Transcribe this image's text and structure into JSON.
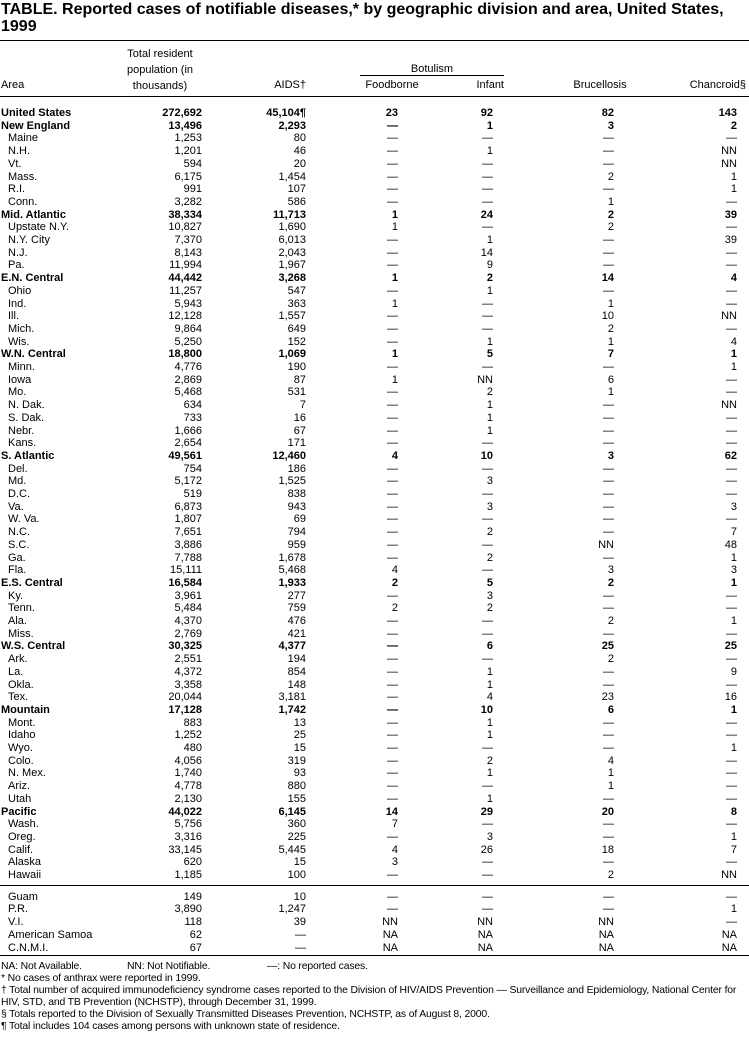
{
  "header": {
    "title": "TABLE. Reported cases of notifiable diseases,* by geographic division and area, United States, 1999"
  },
  "table": {
    "columns": {
      "area": "Area",
      "population": "Total resident population (in thousands)",
      "aids": "AIDS†",
      "botulism": "Botulism",
      "foodborne": "Foodborne",
      "infant": "Infant",
      "brucellosis": "Brucellosis",
      "chancroid": "Chancroid§"
    },
    "sections": [
      {
        "rows": [
          {
            "bold": true,
            "cells": [
              "United States",
              "272,692",
              "45,104¶",
              "23",
              "92",
              "82",
              "143"
            ]
          },
          {
            "bold": true,
            "cells": [
              "New England",
              "13,496",
              "2,293",
              "—",
              "1",
              "3",
              "2"
            ]
          },
          {
            "bold": false,
            "cells": [
              "Maine",
              "1,253",
              "80",
              "—",
              "—",
              "—",
              "—"
            ]
          },
          {
            "bold": false,
            "cells": [
              "N.H.",
              "1,201",
              "46",
              "—",
              "1",
              "—",
              "NN"
            ]
          },
          {
            "bold": false,
            "cells": [
              "Vt.",
              "594",
              "20",
              "—",
              "—",
              "—",
              "NN"
            ]
          },
          {
            "bold": false,
            "cells": [
              "Mass.",
              "6,175",
              "1,454",
              "—",
              "—",
              "2",
              "1"
            ]
          },
          {
            "bold": false,
            "cells": [
              "R.I.",
              "991",
              "107",
              "—",
              "—",
              "—",
              "1"
            ]
          },
          {
            "bold": false,
            "cells": [
              "Conn.",
              "3,282",
              "586",
              "—",
              "—",
              "1",
              "—"
            ]
          },
          {
            "bold": true,
            "cells": [
              "Mid. Atlantic",
              "38,334",
              "11,713",
              "1",
              "24",
              "2",
              "39"
            ]
          },
          {
            "bold": false,
            "cells": [
              "Upstate N.Y.",
              "10,827",
              "1,690",
              "1",
              "—",
              "2",
              "—"
            ]
          },
          {
            "bold": false,
            "cells": [
              "N.Y. City",
              "7,370",
              "6,013",
              "—",
              "1",
              "—",
              "39"
            ]
          },
          {
            "bold": false,
            "cells": [
              "N.J.",
              "8,143",
              "2,043",
              "—",
              "14",
              "—",
              "—"
            ]
          },
          {
            "bold": false,
            "cells": [
              "Pa.",
              "11,994",
              "1,967",
              "—",
              "9",
              "—",
              "—"
            ]
          },
          {
            "bold": true,
            "cells": [
              "E.N. Central",
              "44,442",
              "3,268",
              "1",
              "2",
              "14",
              "4"
            ]
          },
          {
            "bold": false,
            "cells": [
              "Ohio",
              "11,257",
              "547",
              "—",
              "1",
              "—",
              "—"
            ]
          },
          {
            "bold": false,
            "cells": [
              "Ind.",
              "5,943",
              "363",
              "1",
              "—",
              "1",
              "—"
            ]
          },
          {
            "bold": false,
            "cells": [
              "Ill.",
              "12,128",
              "1,557",
              "—",
              "—",
              "10",
              "NN"
            ]
          },
          {
            "bold": false,
            "cells": [
              "Mich.",
              "9,864",
              "649",
              "—",
              "—",
              "2",
              "—"
            ]
          },
          {
            "bold": false,
            "cells": [
              "Wis.",
              "5,250",
              "152",
              "—",
              "1",
              "1",
              "4"
            ]
          },
          {
            "bold": true,
            "cells": [
              "W.N. Central",
              "18,800",
              "1,069",
              "1",
              "5",
              "7",
              "1"
            ]
          },
          {
            "bold": false,
            "cells": [
              "Minn.",
              "4,776",
              "190",
              "—",
              "—",
              "—",
              "1"
            ]
          },
          {
            "bold": false,
            "cells": [
              "Iowa",
              "2,869",
              "87",
              "1",
              "NN",
              "6",
              "—"
            ]
          },
          {
            "bold": false,
            "cells": [
              "Mo.",
              "5,468",
              "531",
              "—",
              "2",
              "1",
              "—"
            ]
          },
          {
            "bold": false,
            "cells": [
              "N. Dak.",
              "634",
              "7",
              "—",
              "1",
              "—",
              "NN"
            ]
          },
          {
            "bold": false,
            "cells": [
              "S. Dak.",
              "733",
              "16",
              "—",
              "1",
              "—",
              "—"
            ]
          },
          {
            "bold": false,
            "cells": [
              "Nebr.",
              "1,666",
              "67",
              "—",
              "1",
              "—",
              "—"
            ]
          },
          {
            "bold": false,
            "cells": [
              "Kans.",
              "2,654",
              "171",
              "—",
              "—",
              "—",
              "—"
            ]
          },
          {
            "bold": true,
            "cells": [
              "S. Atlantic",
              "49,561",
              "12,460",
              "4",
              "10",
              "3",
              "62"
            ]
          },
          {
            "bold": false,
            "cells": [
              "Del.",
              "754",
              "186",
              "—",
              "—",
              "—",
              "—"
            ]
          },
          {
            "bold": false,
            "cells": [
              "Md.",
              "5,172",
              "1,525",
              "—",
              "3",
              "—",
              "—"
            ]
          },
          {
            "bold": false,
            "cells": [
              "D.C.",
              "519",
              "838",
              "—",
              "—",
              "—",
              "—"
            ]
          },
          {
            "bold": false,
            "cells": [
              "Va.",
              "6,873",
              "943",
              "—",
              "3",
              "—",
              "3"
            ]
          },
          {
            "bold": false,
            "cells": [
              "W. Va.",
              "1,807",
              "69",
              "—",
              "—",
              "—",
              "—"
            ]
          },
          {
            "bold": false,
            "cells": [
              "N.C.",
              "7,651",
              "794",
              "—",
              "2",
              "—",
              "7"
            ]
          },
          {
            "bold": false,
            "cells": [
              "S.C.",
              "3,886",
              "959",
              "—",
              "—",
              "NN",
              "48"
            ]
          },
          {
            "bold": false,
            "cells": [
              "Ga.",
              "7,788",
              "1,678",
              "—",
              "2",
              "—",
              "1"
            ]
          },
          {
            "bold": false,
            "cells": [
              "Fla.",
              "15,111",
              "5,468",
              "4",
              "—",
              "3",
              "3"
            ]
          },
          {
            "bold": true,
            "cells": [
              "E.S. Central",
              "16,584",
              "1,933",
              "2",
              "5",
              "2",
              "1"
            ]
          },
          {
            "bold": false,
            "cells": [
              "Ky.",
              "3,961",
              "277",
              "—",
              "3",
              "—",
              "—"
            ]
          },
          {
            "bold": false,
            "cells": [
              "Tenn.",
              "5,484",
              "759",
              "2",
              "2",
              "—",
              "—"
            ]
          },
          {
            "bold": false,
            "cells": [
              "Ala.",
              "4,370",
              "476",
              "—",
              "—",
              "2",
              "1"
            ]
          },
          {
            "bold": false,
            "cells": [
              "Miss.",
              "2,769",
              "421",
              "—",
              "—",
              "—",
              "—"
            ]
          },
          {
            "bold": true,
            "cells": [
              "W.S. Central",
              "30,325",
              "4,377",
              "—",
              "6",
              "25",
              "25"
            ]
          },
          {
            "bold": false,
            "cells": [
              "Ark.",
              "2,551",
              "194",
              "—",
              "—",
              "2",
              "—"
            ]
          },
          {
            "bold": false,
            "cells": [
              "La.",
              "4,372",
              "854",
              "—",
              "1",
              "—",
              "9"
            ]
          },
          {
            "bold": false,
            "cells": [
              "Okla.",
              "3,358",
              "148",
              "—",
              "1",
              "—",
              "—"
            ]
          },
          {
            "bold": false,
            "cells": [
              "Tex.",
              "20,044",
              "3,181",
              "—",
              "4",
              "23",
              "16"
            ]
          },
          {
            "bold": true,
            "cells": [
              "Mountain",
              "17,128",
              "1,742",
              "—",
              "10",
              "6",
              "1"
            ]
          },
          {
            "bold": false,
            "cells": [
              "Mont.",
              "883",
              "13",
              "—",
              "1",
              "—",
              "—"
            ]
          },
          {
            "bold": false,
            "cells": [
              "Idaho",
              "1,252",
              "25",
              "—",
              "1",
              "—",
              "—"
            ]
          },
          {
            "bold": false,
            "cells": [
              "Wyo.",
              "480",
              "15",
              "—",
              "—",
              "—",
              "1"
            ]
          },
          {
            "bold": false,
            "cells": [
              "Colo.",
              "4,056",
              "319",
              "—",
              "2",
              "4",
              "—"
            ]
          },
          {
            "bold": false,
            "cells": [
              "N. Mex.",
              "1,740",
              "93",
              "—",
              "1",
              "1",
              "—"
            ]
          },
          {
            "bold": false,
            "cells": [
              "Ariz.",
              "4,778",
              "880",
              "—",
              "—",
              "1",
              "—"
            ]
          },
          {
            "bold": false,
            "cells": [
              "Utah",
              "2,130",
              "155",
              "—",
              "1",
              "—",
              "—"
            ]
          },
          {
            "bold": true,
            "cells": [
              "Pacific",
              "44,022",
              "6,145",
              "14",
              "29",
              "20",
              "8"
            ]
          },
          {
            "bold": false,
            "cells": [
              "Wash.",
              "5,756",
              "360",
              "7",
              "—",
              "—",
              "—"
            ]
          },
          {
            "bold": false,
            "cells": [
              "Oreg.",
              "3,316",
              "225",
              "—",
              "3",
              "—",
              "1"
            ]
          },
          {
            "bold": false,
            "cells": [
              "Calif.",
              "33,145",
              "5,445",
              "4",
              "26",
              "18",
              "7"
            ]
          },
          {
            "bold": false,
            "cells": [
              "Alaska",
              "620",
              "15",
              "3",
              "—",
              "—",
              "—"
            ]
          },
          {
            "bold": false,
            "cells": [
              "Hawaii",
              "1,185",
              "100",
              "—",
              "—",
              "2",
              "NN"
            ]
          }
        ]
      },
      {
        "rows": [
          {
            "bold": false,
            "cells": [
              "Guam",
              "149",
              "10",
              "—",
              "—",
              "—",
              "—"
            ]
          },
          {
            "bold": false,
            "cells": [
              "P.R.",
              "3,890",
              "1,247",
              "—",
              "—",
              "—",
              "1"
            ]
          },
          {
            "bold": false,
            "cells": [
              "V.I.",
              "118",
              "39",
              "NN",
              "NN",
              "NN",
              "—"
            ]
          },
          {
            "bold": false,
            "cells": [
              "American Samoa",
              "62",
              "—",
              "NA",
              "NA",
              "NA",
              "NA"
            ]
          },
          {
            "bold": false,
            "cells": [
              "C.N.M.I.",
              "67",
              "—",
              "NA",
              "NA",
              "NA",
              "NA"
            ]
          }
        ]
      }
    ]
  },
  "footnotes": {
    "legend": [
      "NA: Not Available.",
      "NN: Not Notifiable.",
      "—: No reported cases."
    ],
    "notes": [
      "* No cases of anthrax were reported in 1999.",
      "† Total number of acquired immunodeficiency syndrome cases reported to the Division of HIV/AIDS Prevention — Surveillance and Epidemiology, National Center for HIV, STD, and TB Prevention (NCHSTP), through December 31, 1999.",
      "§ Totals reported to the Division of Sexually Transmitted Diseases Prevention, NCHSTP, as of August 8, 2000.",
      "¶ Total includes 104 cases among persons with unknown state of residence."
    ]
  }
}
